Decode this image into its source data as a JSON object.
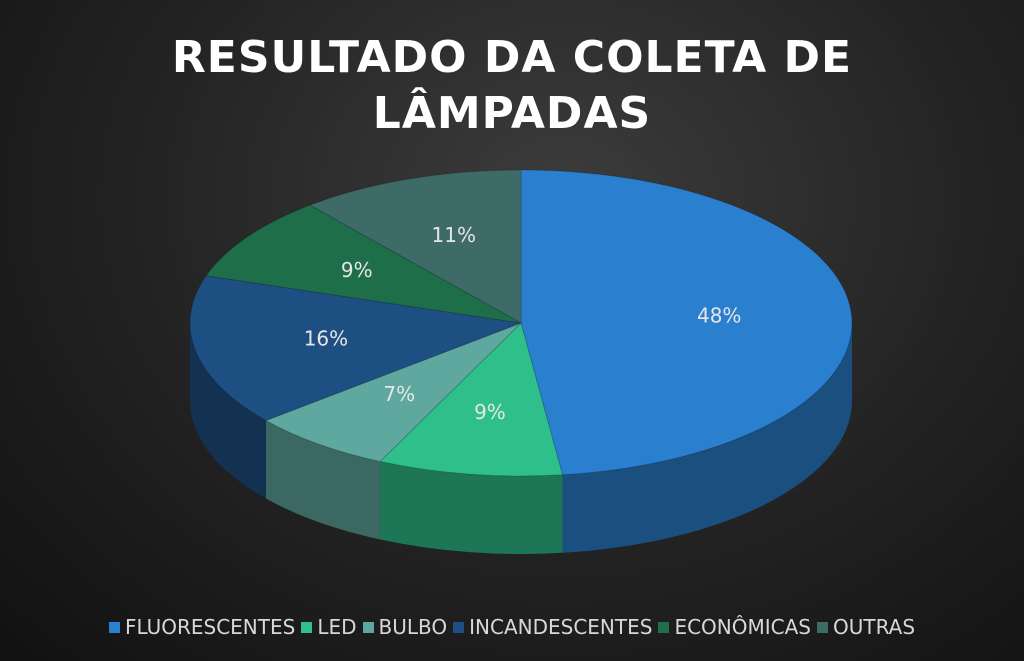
{
  "chart_data": {
    "type": "pie",
    "title": "RESULTADO DA COLETA DE LÂMPADAS",
    "categories": [
      "FLUORESCENTES",
      "LED",
      "BULBO",
      "INCANDESCENTES",
      "ECONÔMICAS",
      "OUTRAS"
    ],
    "values": [
      48,
      9,
      7,
      16,
      9,
      11
    ],
    "value_labels": [
      "48%",
      "9%",
      "7%",
      "16%",
      "9%",
      "11%"
    ],
    "colors": [
      "#2a7fcf",
      "#2fbf8a",
      "#5fa8a0",
      "#1e4f82",
      "#1e6e4a",
      "#3e6a68"
    ],
    "legend": "bottom"
  }
}
